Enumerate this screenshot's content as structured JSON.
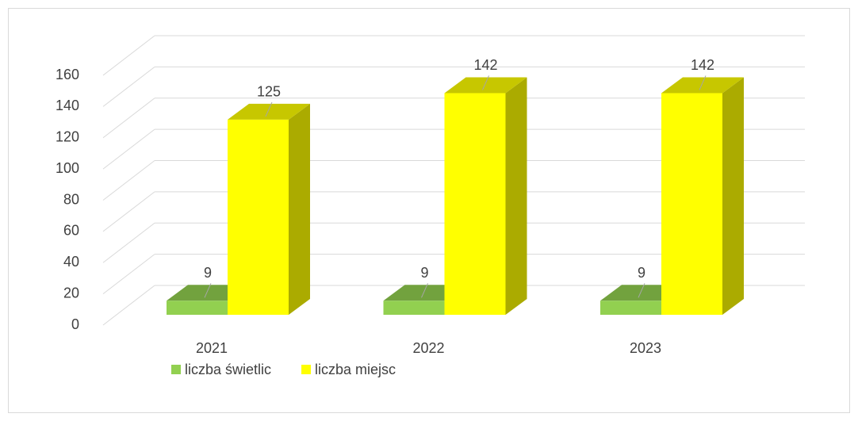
{
  "chart_data": {
    "type": "bar3d",
    "categories": [
      "2021",
      "2022",
      "2023"
    ],
    "series": [
      {
        "name": "liczba świetlic",
        "color": "#92d050",
        "values": [
          9,
          9,
          9
        ]
      },
      {
        "name": "liczba miejsc",
        "color": "#ffff00",
        "values": [
          125,
          142,
          142
        ]
      }
    ],
    "ylim": [
      0,
      160
    ],
    "yticks": [
      0,
      20,
      40,
      60,
      80,
      100,
      120,
      140,
      160
    ],
    "grid": true,
    "legend": "bottom"
  }
}
